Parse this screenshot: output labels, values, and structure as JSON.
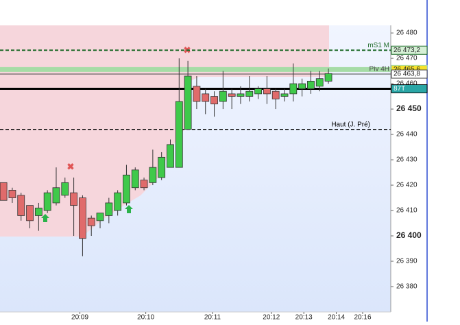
{
  "chart_data": {
    "type": "candlestick",
    "xlim": [
      -0.4,
      44.1
    ],
    "xticks": [
      {
        "value": 8.7,
        "label": "20:09"
      },
      {
        "value": 16.2,
        "label": "20:10"
      },
      {
        "value": 23.8,
        "label": "20:11"
      },
      {
        "value": 30.5,
        "label": "20:12"
      },
      {
        "value": 34.2,
        "label": "20:13"
      },
      {
        "value": 37.9,
        "label": "20:14"
      },
      {
        "value": 40.9,
        "label": "20:16"
      }
    ],
    "ylim": [
      26370,
      26483
    ],
    "yticks": [
      {
        "value": 26480,
        "label": "26 480"
      },
      {
        "value": 26470,
        "label": "26 470"
      },
      {
        "value": 26460,
        "label": "26 460"
      },
      {
        "value": 26450,
        "label": "26 450",
        "bold": true
      },
      {
        "value": 26440,
        "label": "26 440"
      },
      {
        "value": 26430,
        "label": "26 430"
      },
      {
        "value": 26420,
        "label": "26 420"
      },
      {
        "value": 26410,
        "label": "26 410"
      },
      {
        "value": 26400,
        "label": "26 400",
        "bold": true
      },
      {
        "value": 26390,
        "label": "26 390"
      },
      {
        "value": 26380,
        "label": "26 380"
      }
    ],
    "up_color": "#3fc94a",
    "down_color": "#e06b6b",
    "open": [
      26421,
      26418,
      26416,
      26412,
      26408,
      26410,
      26413,
      26416,
      26417,
      26415,
      26407,
      26406,
      26408,
      26410,
      26413,
      26419,
      26422,
      26421,
      26423,
      26427,
      26427,
      26442,
      26459,
      26456,
      26455,
      26453,
      26456,
      26455,
      26455,
      26456,
      26458,
      26457,
      26455,
      26456,
      26458,
      26458,
      26459,
      26461
    ],
    "high": [
      26421,
      26419,
      26417,
      26412,
      26413,
      26418,
      26427,
      26423,
      26423,
      26416,
      26408,
      26409,
      26415,
      26418,
      26428,
      26427,
      26423,
      26434,
      26433,
      26438,
      26470,
      26469,
      26463,
      26458,
      26457,
      26465,
      26458,
      26459,
      26463,
      26459,
      26463,
      26458,
      26458,
      26468,
      26462,
      26465,
      26465,
      26466
    ],
    "low": [
      26414,
      26413,
      26406,
      26403,
      26402,
      26409,
      26412,
      26415,
      26400,
      26392,
      26400,
      26403,
      26405,
      26408,
      26412,
      26418,
      26418,
      26420,
      26422,
      26427,
      26427,
      26442,
      26450,
      26448,
      26447,
      26450,
      26450,
      26452,
      26453,
      26454,
      26452,
      26450,
      26453,
      26453,
      26455,
      26456,
      26457,
      26460
    ],
    "close": [
      26414,
      26415,
      26408,
      26406,
      26411,
      26417,
      26419,
      26421,
      26412,
      26399,
      26404,
      26409,
      26413,
      26417,
      26424,
      26426,
      26419,
      26427,
      26431,
      26436,
      26453,
      26463,
      26453,
      26453,
      26452,
      26457,
      26455,
      26456,
      26457,
      26458,
      26456,
      26454,
      26456,
      26460,
      26460,
      26461,
      26462,
      26464
    ],
    "levels": [
      {
        "name": "mS1 M",
        "value": 26473.2,
        "label": "26 473,2",
        "color": "#1f6b2a",
        "style": "dashed",
        "box": "#d6f0d6"
      },
      {
        "value": 26465.6,
        "label": "26 465,6",
        "color": "#a6dca6",
        "style": "band",
        "box": "#f5e12a"
      },
      {
        "name": "Piv 4H",
        "value": 26463.8,
        "label": "26 463,8",
        "color": "#444444",
        "style": "solid",
        "box": "#ffffff"
      },
      {
        "value": 26458,
        "label": "87T",
        "color": "#000000",
        "style": "bold",
        "box": "#2aa6a6"
      },
      {
        "name": "Haut (J. Pré)",
        "value": 26442,
        "color": "#000000",
        "style": "dashed"
      }
    ]
  }
}
